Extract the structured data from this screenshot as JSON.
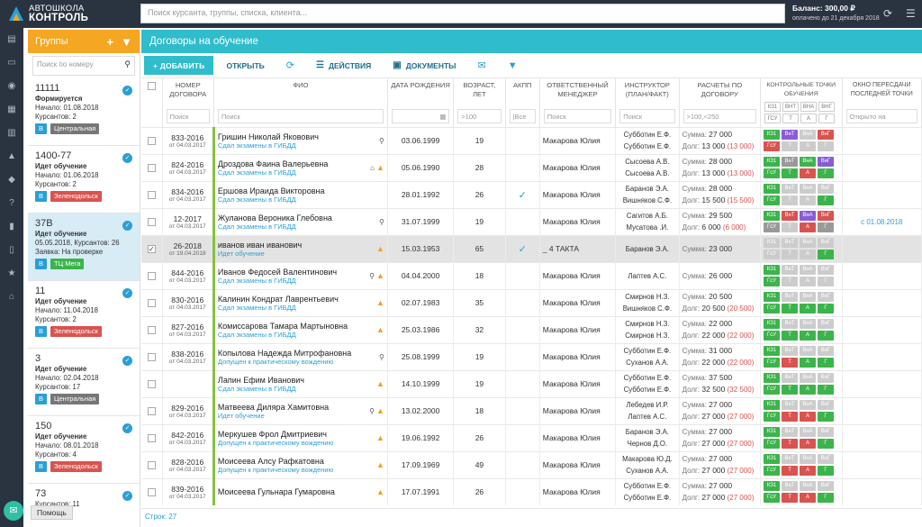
{
  "app": {
    "logo_line1": "Автошкола",
    "logo_line2": "Контроль"
  },
  "search": {
    "placeholder": "Поиск курсанта, группы, списка, клиента..."
  },
  "balance": {
    "line1": "Баланс: 300,00 ₽",
    "line2": "оплачено до 21 декабря 2018"
  },
  "help": {
    "label": "Помощь"
  },
  "groups": {
    "title": "Группы",
    "search_placeholder": "Поиск по номеру",
    "items": [
      {
        "name": "11111",
        "status": "Формируется",
        "l1": "Начало: 01.08.2018",
        "l2": "Курсантов: 2",
        "cat": "B",
        "place": "Центральная",
        "place_color": "gray",
        "extra": ""
      },
      {
        "name": "1400-77",
        "status": "Идет обучение",
        "l1": "Начало: 01.06.2018",
        "l2": "Курсантов: 2",
        "cat": "B",
        "place": "Зеленодольск",
        "place_color": "red",
        "extra": ""
      },
      {
        "name": "37В",
        "status": "Идет обучение",
        "l1": "05.05.2018, Курсантов: 26",
        "l2": "Заявка: На проверке",
        "cat": "B",
        "place": "ТЦ Мега",
        "place_color": "green",
        "extra": ""
      },
      {
        "name": "11",
        "status": "Идет обучение",
        "l1": "Начало: 11.04.2018",
        "l2": "Курсантов: 2",
        "cat": "B",
        "place": "Зеленодольск",
        "place_color": "red",
        "extra": ""
      },
      {
        "name": "3",
        "status": "Идет обучение",
        "l1": "Начало: 02.04.2018",
        "l2": "Курсантов: 17",
        "cat": "B",
        "place": "Центральная",
        "place_color": "gray",
        "extra": ""
      },
      {
        "name": "150",
        "status": "Идет обучение",
        "l1": "Начало: 08.01.2018",
        "l2": "Курсантов: 4",
        "cat": "B",
        "place": "Зеленодольск",
        "place_color": "red",
        "extra": ""
      },
      {
        "name": "73",
        "status": "",
        "l1": "",
        "l2": "Курсантов: 11",
        "cat": "",
        "place": "",
        "place_color": "",
        "extra": ""
      }
    ]
  },
  "main": {
    "title": "Договоры на обучение",
    "toolbar": {
      "add": "+ ДОБАВИТЬ",
      "open": "ОТКРЫТЬ",
      "actions": "ДЕЙСТВИЯ",
      "docs": "ДОКУМЕНТЫ"
    },
    "columns": {
      "num": "Номер договора",
      "fio": "ФИО",
      "bdate": "Дата рождения",
      "age": "Возраст, лет",
      "akpp": "АКПП",
      "manager": "Ответственный менеджер",
      "instr": "Инструктор (план/факт)",
      "pay": "Расчеты по договору",
      "kt": "Контрольные точки обучения",
      "okno": "Окно пересдачи последней точки"
    },
    "filters": {
      "num": "Поиск",
      "fio": "Поиск",
      "age": ">100",
      "akpp": "|Все",
      "manager": "Поиск",
      "instr": "Поиск",
      "pay": ">100,<250",
      "okno": "Открыто на"
    },
    "kt_labels": [
      "КЗ1",
      "ВнТ",
      "ВнА",
      "ВнГ",
      "ГсУ",
      "Т",
      "А",
      "Г"
    ],
    "footer": "Строк: 27",
    "pay_sum_label": "Сумма:",
    "pay_debt_label": "Долг:",
    "rows": [
      {
        "num": "833-2016",
        "date": "от 04.03.2017",
        "fio": "Гришин Николай Яковович",
        "sub": "Сдал экзамены в ГИБДД",
        "pin": true,
        "warn": false,
        "home": false,
        "bdate": "03.06.1999",
        "age": "19",
        "akpp": false,
        "manager": "Макарова Юлия",
        "i1": "Субботин Е.Ф.",
        "i2": "Субботин Е.Ф.",
        "sum": "27 000",
        "debt": "13 000",
        "debt_red": "(13 000)",
        "kt": [
          "g",
          "v",
          "x",
          "r",
          "r",
          "x",
          "x",
          "x"
        ],
        "okno": ""
      },
      {
        "num": "824-2016",
        "date": "от 04.03.2017",
        "fio": "Дроздова Фаина Валерьевна",
        "sub": "Сдал экзамены в ГИБДД",
        "pin": false,
        "warn": true,
        "home": true,
        "bdate": "05.06.1990",
        "age": "28",
        "akpp": false,
        "manager": "Макарова Юлия",
        "i1": "Сысоева А.В.",
        "i2": "Сысоева А.В.",
        "sum": "28 000",
        "debt": "13 000",
        "debt_red": "(13 000)",
        "kt": [
          "g",
          "gray",
          "g",
          "v",
          "g",
          "g",
          "r",
          "g"
        ],
        "okno": ""
      },
      {
        "num": "834-2016",
        "date": "от 04.03.2017",
        "fio": "Ершова Ираида Викторовна",
        "sub": "Сдал экзамены в ГИБДД",
        "pin": false,
        "warn": false,
        "home": false,
        "bdate": "28.01.1992",
        "age": "26",
        "akpp": true,
        "manager": "Макарова Юлия",
        "i1": "Баранов Э.А.",
        "i2": "Вишняков С.Ф.",
        "sum": "28 000",
        "debt": "15 500",
        "debt_red": "(15 500)",
        "kt": [
          "g",
          "x",
          "x",
          "x",
          "g",
          "x",
          "x",
          "g"
        ],
        "okno": ""
      },
      {
        "num": "12-2017",
        "date": "от 04.03.2017",
        "fio": "Жуланова Вероника Глебовна",
        "sub": "Сдал экзамены в ГИБДД",
        "pin": true,
        "warn": false,
        "home": false,
        "bdate": "31.07.1999",
        "age": "19",
        "akpp": false,
        "manager": "Макарова Юлия",
        "i1": "Сагитов А.Б.",
        "i2": "Мусатова .И.",
        "sum": "29 500",
        "debt": "6 000",
        "debt_red": "(6 000)",
        "kt": [
          "g",
          "r",
          "v",
          "r",
          "gray",
          "x",
          "r",
          "gray"
        ],
        "okno": "с 01.08.2018"
      },
      {
        "num": "26-2018",
        "date": "от 19.04.2018",
        "fio": "иванов иван иванович",
        "sub": "Идет обучение",
        "pin": false,
        "warn": true,
        "home": false,
        "bdate": "15.03.1953",
        "age": "65",
        "akpp": true,
        "manager": "_ 4 ТАКТА",
        "i1": "Баранов Э.А.",
        "i2": "",
        "sum": "23 000",
        "debt": "",
        "debt_red": "",
        "kt": [
          "x",
          "x",
          "x",
          "x",
          "x",
          "x",
          "x",
          "g"
        ],
        "okno": "",
        "selected": true
      },
      {
        "num": "844-2016",
        "date": "от 04.03.2017",
        "fio": "Иванов Федосей Валентинович",
        "sub": "Сдал экзамены в ГИБДД",
        "pin": true,
        "warn": true,
        "home": false,
        "bdate": "04.04.2000",
        "age": "18",
        "akpp": false,
        "manager": "Макарова Юлия",
        "i1": "Лаптев А.С.",
        "i2": "",
        "sum": "26 000",
        "debt": "",
        "debt_red": "",
        "kt": [
          "g",
          "x",
          "x",
          "x",
          "g",
          "x",
          "x",
          "x"
        ],
        "okno": ""
      },
      {
        "num": "830-2016",
        "date": "от 04.03.2017",
        "fio": "Калинин Кондрат Лаврентьевич",
        "sub": "Сдал экзамены в ГИБДД",
        "pin": false,
        "warn": true,
        "home": false,
        "bdate": "02.07.1983",
        "age": "35",
        "akpp": false,
        "manager": "Макарова Юлия",
        "i1": "Смирнов Н.З.",
        "i2": "Вишняков С.Ф.",
        "sum": "20 500",
        "debt": "20 500",
        "debt_red": "(20 500)",
        "kt": [
          "g",
          "x",
          "x",
          "x",
          "g",
          "g",
          "g",
          "g"
        ],
        "okno": ""
      },
      {
        "num": "827-2016",
        "date": "от 04.03.2017",
        "fio": "Комиссарова Тамара Мартыновна",
        "sub": "Сдал экзамены в ГИБДД",
        "pin": false,
        "warn": true,
        "home": false,
        "bdate": "25.03.1986",
        "age": "32",
        "akpp": false,
        "manager": "Макарова Юлия",
        "i1": "Смирнов Н.З.",
        "i2": "Смирнов Н.З.",
        "sum": "22 000",
        "debt": "22 000",
        "debt_red": "(22 000)",
        "kt": [
          "g",
          "x",
          "x",
          "x",
          "g",
          "g",
          "g",
          "g"
        ],
        "okno": ""
      },
      {
        "num": "838-2016",
        "date": "от 04.03.2017",
        "fio": "Копылова Надежда Митрофановна",
        "sub": "Допущен к практическому вождению",
        "pin": true,
        "warn": false,
        "home": false,
        "bdate": "25.08.1999",
        "age": "19",
        "akpp": false,
        "manager": "Макарова Юлия",
        "i1": "Субботин Е.Ф.",
        "i2": "Суханов А.А.",
        "sum": "31 000",
        "debt": "22 000",
        "debt_red": "(22 000)",
        "kt": [
          "g",
          "x",
          "x",
          "x",
          "g",
          "r",
          "g",
          "g"
        ],
        "okno": ""
      },
      {
        "num": "",
        "date": "",
        "fio": "Лапин Ефим Иванович",
        "sub": "Сдал экзамены в ГИБДД",
        "pin": false,
        "warn": true,
        "home": false,
        "bdate": "14.10.1999",
        "age": "19",
        "akpp": false,
        "manager": "Макарова Юлия",
        "i1": "Субботин Е.Ф.",
        "i2": "Субботин Е.Ф.",
        "sum": "37 500",
        "debt": "32 500",
        "debt_red": "(32 500)",
        "kt": [
          "g",
          "x",
          "x",
          "x",
          "g",
          "g",
          "g",
          "g"
        ],
        "okno": ""
      },
      {
        "num": "829-2016",
        "date": "от 04.03.2017",
        "fio": "Матвеева Диляра Хамитовна",
        "sub": "Идет обучение",
        "pin": true,
        "warn": true,
        "home": false,
        "bdate": "13.02.2000",
        "age": "18",
        "akpp": false,
        "manager": "Макарова Юлия",
        "i1": "Лебедев И.Р.",
        "i2": "Лаптев А.С.",
        "sum": "27 000",
        "debt": "27 000",
        "debt_red": "(27 000)",
        "kt": [
          "g",
          "x",
          "x",
          "x",
          "g",
          "r",
          "r",
          "g"
        ],
        "okno": ""
      },
      {
        "num": "842-2016",
        "date": "от 04.03.2017",
        "fio": "Меркушев Фрол Дмитриевич",
        "sub": "Допущен к практическому вождению",
        "pin": false,
        "warn": true,
        "home": false,
        "bdate": "19.06.1992",
        "age": "26",
        "akpp": false,
        "manager": "Макарова Юлия",
        "i1": "Баранов Э.А.",
        "i2": "Чернов Д.О.",
        "sum": "27 000",
        "debt": "27 000",
        "debt_red": "(27 000)",
        "kt": [
          "g",
          "x",
          "x",
          "x",
          "g",
          "r",
          "r",
          "g"
        ],
        "okno": ""
      },
      {
        "num": "828-2016",
        "date": "от 04.03.2017",
        "fio": "Моисеева Алсу Рафкатовна",
        "sub": "Допущен к практическому вождению",
        "pin": false,
        "warn": true,
        "home": false,
        "bdate": "17.09.1969",
        "age": "49",
        "akpp": false,
        "manager": "Макарова Юлия",
        "i1": "Макарова Ю.Д.",
        "i2": "Суханов А.А.",
        "sum": "27 000",
        "debt": "27 000",
        "debt_red": "(27 000)",
        "kt": [
          "g",
          "x",
          "x",
          "x",
          "g",
          "r",
          "r",
          "g"
        ],
        "okno": ""
      },
      {
        "num": "839-2016",
        "date": "от 04.03.2017",
        "fio": "Моисеева Гульнара Гумаровна",
        "sub": "",
        "pin": false,
        "warn": true,
        "home": false,
        "bdate": "17.07.1991",
        "age": "26",
        "akpp": false,
        "manager": "Макарова Юлия",
        "i1": "Субботин Е.Ф.",
        "i2": "Субботин Е.Ф.",
        "sum": "27 000",
        "debt": "27 000",
        "debt_red": "(27 000)",
        "kt": [
          "g",
          "x",
          "x",
          "x",
          "g",
          "r",
          "r",
          "g"
        ],
        "okno": ""
      }
    ]
  }
}
